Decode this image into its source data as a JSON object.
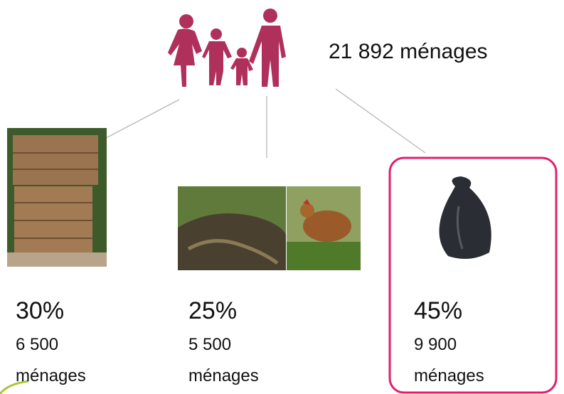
{
  "total": {
    "label": "21 892 ménages"
  },
  "branches": [
    {
      "percent": "30%",
      "count": "6 500",
      "unit": "ménages"
    },
    {
      "percent": "25%",
      "count": "5 500",
      "unit": "ménages"
    },
    {
      "percent": "45%",
      "count": "9 900",
      "unit": "ménages"
    }
  ]
}
